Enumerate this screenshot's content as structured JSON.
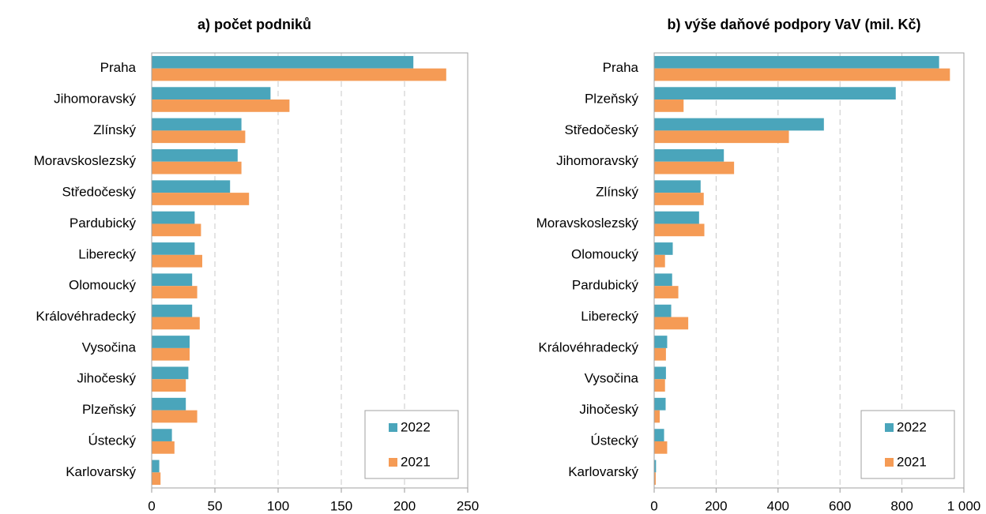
{
  "chart_data": [
    {
      "type": "bar",
      "orientation": "horizontal",
      "title": "a) počet podniků",
      "categories": [
        "Praha",
        "Jihomoravský",
        "Zlínský",
        "Moravskoslezský",
        "Středočeský",
        "Pardubický",
        "Liberecký",
        "Olomoucký",
        "Královéhradecký",
        "Vysočina",
        "Jihočeský",
        "Plzeňský",
        "Ústecký",
        "Karlovarský"
      ],
      "series": [
        {
          "name": "2022",
          "color": "#4aa5bb",
          "values": [
            207,
            94,
            71,
            68,
            62,
            34,
            34,
            32,
            32,
            30,
            29,
            27,
            16,
            6
          ]
        },
        {
          "name": "2021",
          "color": "#f59b55",
          "values": [
            233,
            109,
            74,
            71,
            77,
            39,
            40,
            36,
            38,
            30,
            27,
            36,
            18,
            7
          ]
        }
      ],
      "xlim": [
        0,
        250
      ],
      "xticks": [
        0,
        50,
        100,
        150,
        200,
        250
      ],
      "grid": true,
      "legend": "lower right"
    },
    {
      "type": "bar",
      "orientation": "horizontal",
      "title": "b) výše daňové podpory VaV (mil. Kč)",
      "categories": [
        "Praha",
        "Plzeňský",
        "Středočeský",
        "Jihomoravský",
        "Zlínský",
        "Moravskoslezský",
        "Olomoucký",
        "Pardubický",
        "Liberecký",
        "Královéhradecký",
        "Vysočina",
        "Jihočeský",
        "Ústecký",
        "Karlovarský"
      ],
      "series": [
        {
          "name": "2022",
          "color": "#4aa5bb",
          "values": [
            920,
            780,
            548,
            225,
            150,
            145,
            60,
            58,
            55,
            42,
            38,
            37,
            32,
            6
          ]
        },
        {
          "name": "2021",
          "color": "#f59b55",
          "values": [
            955,
            95,
            435,
            258,
            160,
            162,
            35,
            78,
            110,
            38,
            35,
            18,
            42,
            5
          ]
        }
      ],
      "xlim": [
        0,
        1000
      ],
      "xticks": [
        0,
        200,
        400,
        600,
        800,
        {
          "value": 1000,
          "label": "1 000"
        }
      ],
      "grid": true,
      "legend": "lower right"
    }
  ]
}
